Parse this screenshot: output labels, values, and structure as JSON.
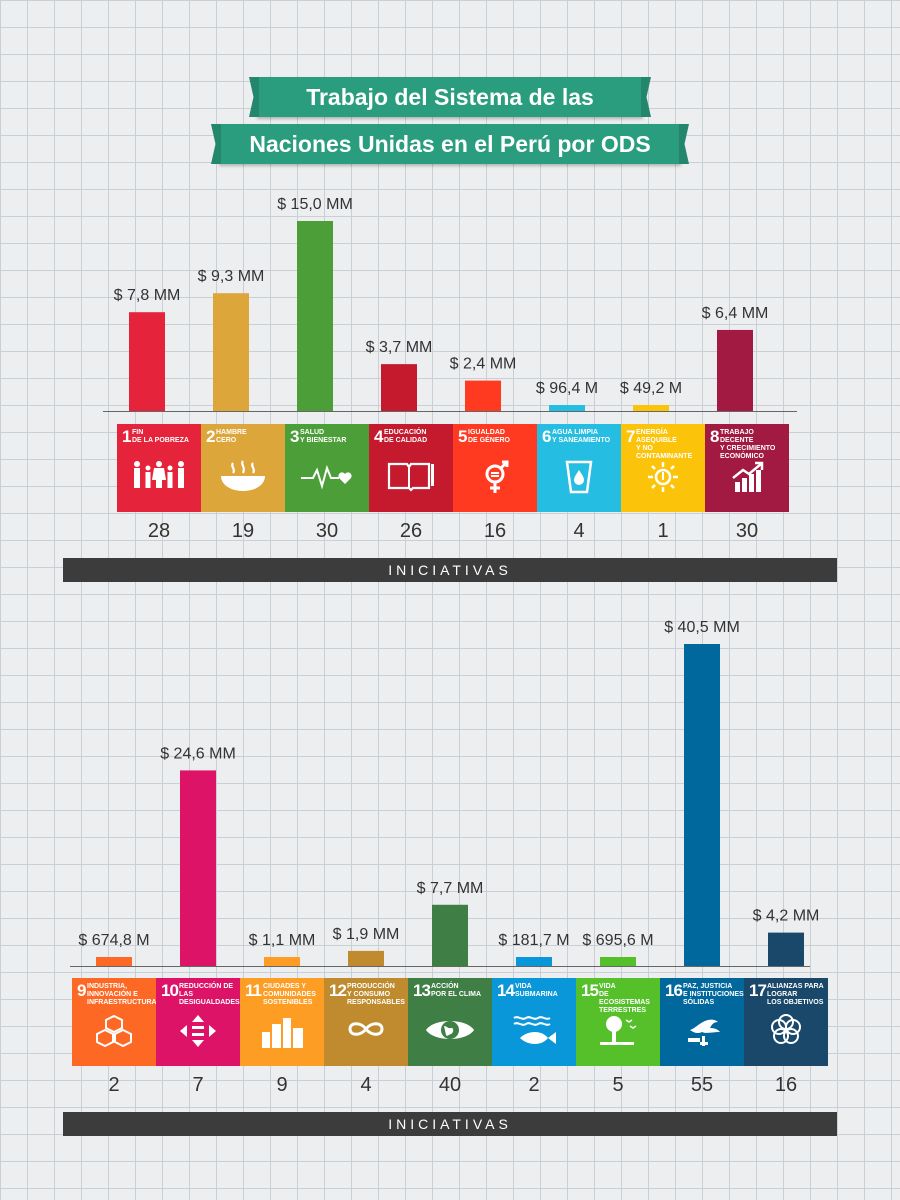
{
  "title": {
    "line1": "Trabajo del Sistema de las",
    "line2": "Naciones Unidas en el Perú por ODS"
  },
  "iniciativas_label": "INICIATIVAS",
  "colors": {
    "banner": "#2a9d7f",
    "iniciativas_bar": "#3c3c3c"
  },
  "chart_data": [
    {
      "type": "bar",
      "categories": [
        "1 Fin de la pobreza",
        "2 Hambre cero",
        "3 Salud y bienestar",
        "4 Educación de calidad",
        "5 Igualdad de género",
        "6 Agua limpia y saneamiento",
        "7 Energía asequible y no contaminante",
        "8 Trabajo decente y crecimiento económico"
      ],
      "values_usd": [
        7800000,
        9300000,
        15000000,
        3700000,
        2400000,
        96400,
        49200,
        6400000
      ],
      "value_labels": [
        "$ 7,8 MM",
        "$ 9,3 MM",
        "$ 15,0 MM",
        "$ 3,7 MM",
        "$ 2,4 MM",
        "$ 96,4 M",
        "$ 49,2 M",
        "$ 6,4 MM"
      ],
      "initiatives": [
        "28",
        "19",
        "30",
        "26",
        "16",
        "4",
        "1",
        "30"
      ],
      "colors": [
        "#e5243b",
        "#dda63a",
        "#4c9f38",
        "#c5192d",
        "#ff3a21",
        "#26bde2",
        "#fcc30b",
        "#a21942"
      ]
    },
    {
      "type": "bar",
      "categories": [
        "9 Industria, innovación e infraestructura",
        "10 Reducción de las desigualdades",
        "11 Ciudades y comunidades sostenibles",
        "12 Producción y consumo responsables",
        "13 Acción por el clima",
        "14 Vida submarina",
        "15 Vida de ecosistemas terrestres",
        "16 Paz, justicia e instituciones sólidas",
        "17 Alianzas para lograr los objetivos"
      ],
      "values_usd": [
        674800,
        24600000,
        1100000,
        1900000,
        7700000,
        181700,
        695600,
        40500000,
        4200000
      ],
      "value_labels": [
        "$ 674,8 M",
        "$ 24,6 MM",
        "$ 1,1 MM",
        "$ 1,9 MM",
        "$ 7,7 MM",
        "$ 181,7 M",
        "$ 695,6 M",
        "$ 40,5 MM",
        "$ 4,2 MM"
      ],
      "initiatives": [
        "2",
        "7",
        "9",
        "4",
        "40",
        "2",
        "5",
        "55",
        "16"
      ],
      "colors": [
        "#fd6925",
        "#dd1367",
        "#fd9d24",
        "#bf8b2e",
        "#3f7e44",
        "#0a97d9",
        "#56c02b",
        "#00689d",
        "#19486a"
      ]
    }
  ],
  "tiles": [
    {
      "num": "1",
      "label": "FIN\nDE LA POBREZA",
      "icon": "family-icon"
    },
    {
      "num": "2",
      "label": "HAMBRE\nCERO",
      "icon": "bowl-icon"
    },
    {
      "num": "3",
      "label": "SALUD\nY BIENESTAR",
      "icon": "heartbeat-icon"
    },
    {
      "num": "4",
      "label": "EDUCACIÓN\nDE CALIDAD",
      "icon": "book-icon"
    },
    {
      "num": "5",
      "label": "IGUALDAD\nDE GÉNERO",
      "icon": "gender-icon"
    },
    {
      "num": "6",
      "label": "AGUA LIMPIA\nY SANEAMIENTO",
      "icon": "water-icon"
    },
    {
      "num": "7",
      "label": "ENERGÍA ASEQUIBLE\nY NO CONTAMINANTE",
      "icon": "sun-icon"
    },
    {
      "num": "8",
      "label": "TRABAJO DECENTE\nY CRECIMIENTO\nECONÓMICO",
      "icon": "growth-icon"
    },
    {
      "num": "9",
      "label": "INDUSTRIA,\nINNOVACIÓN E\nINFRAESTRUCTURA",
      "icon": "cubes-icon"
    },
    {
      "num": "10",
      "label": "REDUCCIÓN DE LAS\nDESIGUALDADES",
      "icon": "equality-icon"
    },
    {
      "num": "11",
      "label": "CIUDADES Y\nCOMUNIDADES\nSOSTENIBLES",
      "icon": "city-icon"
    },
    {
      "num": "12",
      "label": "PRODUCCIÓN\nY CONSUMO\nRESPONSABLES",
      "icon": "infinity-icon"
    },
    {
      "num": "13",
      "label": "ACCIÓN\nPOR EL CLIMA",
      "icon": "eye-globe-icon"
    },
    {
      "num": "14",
      "label": "VIDA\nSUBMARINA",
      "icon": "fish-icon"
    },
    {
      "num": "15",
      "label": "VIDA\nDE ECOSISTEMAS\nTERRESTRES",
      "icon": "tree-icon"
    },
    {
      "num": "16",
      "label": "PAZ, JUSTICIA\nE INSTITUCIONES\nSÓLIDAS",
      "icon": "dove-icon"
    },
    {
      "num": "17",
      "label": "ALIANZAS PARA\nLOGRAR\nLOS OBJETIVOS",
      "icon": "flower-icon"
    }
  ]
}
